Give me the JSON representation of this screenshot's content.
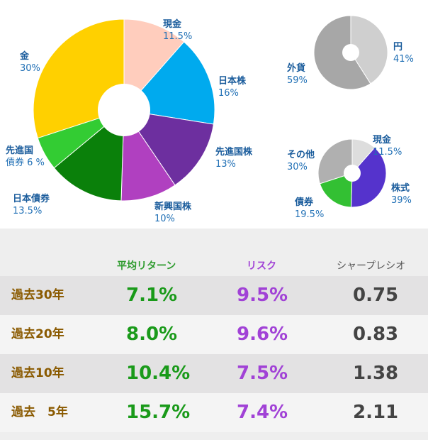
{
  "chart_data": [
    {
      "type": "pie",
      "title": "",
      "slices": [
        {
          "name": "現金",
          "label": "11.5%",
          "value": 11.5,
          "color": "#ffcdbd"
        },
        {
          "name": "日本株",
          "label": "16%",
          "value": 16,
          "color": "#00aaee"
        },
        {
          "name": "先進国株",
          "label": "13%",
          "value": 13,
          "color": "#6d2f9f"
        },
        {
          "name": "新興国株",
          "label": "10%",
          "value": 10,
          "color": "#b040c0"
        },
        {
          "name": "日本債券",
          "label": "13.5%",
          "value": 13.5,
          "color": "#0a800a"
        },
        {
          "name": "先進国債券",
          "label": "6 %",
          "value": 6,
          "color": "#33cc33"
        },
        {
          "name": "金",
          "label": "30%",
          "value": 30,
          "color": "#ffd000"
        }
      ]
    },
    {
      "type": "pie",
      "title": "",
      "slices": [
        {
          "name": "円",
          "label": "41%",
          "value": 41,
          "color": "#cfcfcf"
        },
        {
          "name": "外貨",
          "label": "59%",
          "value": 59,
          "color": "#a7a7a7"
        }
      ]
    },
    {
      "type": "pie",
      "title": "",
      "slices": [
        {
          "name": "現金",
          "label": "11.5%",
          "value": 11.5,
          "color": "#dddddd"
        },
        {
          "name": "株式",
          "label": "39%",
          "value": 39,
          "color": "#5533cc"
        },
        {
          "name": "債券",
          "label": "19.5%",
          "value": 19.5,
          "color": "#33c033"
        },
        {
          "name": "その他",
          "label": "30%",
          "value": 30,
          "color": "#b0b0b0"
        }
      ]
    },
    {
      "type": "table",
      "columns": [
        "平均リターン",
        "リスク",
        "シャープレシオ"
      ],
      "rows": [
        {
          "period": "過去30年",
          "ret": "7.1%",
          "risk": "9.5%",
          "sharpe": "0.75"
        },
        {
          "period": "過去20年",
          "ret": "8.0%",
          "risk": "9.6%",
          "sharpe": "0.83"
        },
        {
          "period": "過去10年",
          "ret": "10.4%",
          "risk": "7.5%",
          "sharpe": "1.38"
        },
        {
          "period": "過去　5年",
          "ret": "15.7%",
          "risk": "7.4%",
          "sharpe": "2.11"
        }
      ]
    }
  ]
}
